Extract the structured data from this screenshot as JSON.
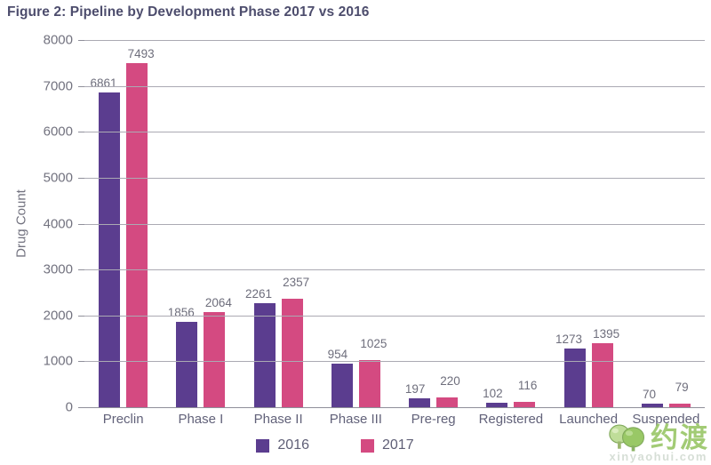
{
  "chart_data": {
    "type": "bar",
    "title": "Figure 2: Pipeline by Development Phase 2017 vs 2016",
    "xlabel": "",
    "ylabel": "Drug Count",
    "categories": [
      "Preclin",
      "Phase I",
      "Phase II",
      "Phase III",
      "Pre-reg",
      "Registered",
      "Launched",
      "Suspended"
    ],
    "series": [
      {
        "name": "2016",
        "color": "#5b3d8f",
        "values": [
          6861,
          1856,
          2261,
          954,
          197,
          102,
          1273,
          70
        ]
      },
      {
        "name": "2017",
        "color": "#d44a81",
        "values": [
          7493,
          2064,
          2357,
          1025,
          220,
          116,
          1395,
          79
        ]
      }
    ],
    "ylim": [
      0,
      8000
    ],
    "ytick_step": 1000,
    "grid": "horizontal",
    "legend_position": "bottom"
  },
  "colors": {
    "series_2016": "#5b3d8f",
    "series_2017": "#d44a81",
    "title_text": "#4d4d6d",
    "axis_text": "#72727f",
    "gridline": "#abaab3",
    "watermark_green": "#92c25e"
  },
  "watermark": {
    "text": "约渡",
    "subtext": "xinyaohui.com",
    "icon": "tree-icon"
  }
}
